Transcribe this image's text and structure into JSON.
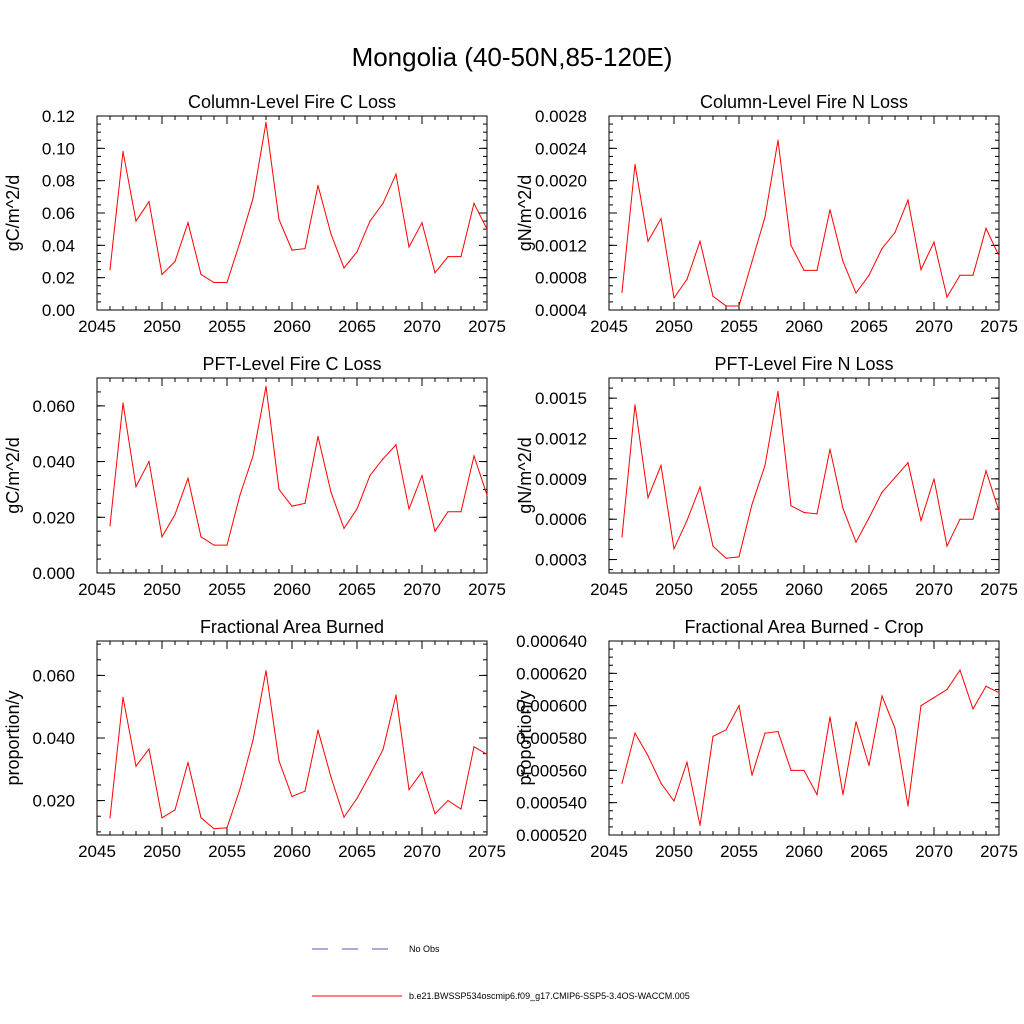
{
  "figure": {
    "title": "Mongolia (40-50N,85-120E)"
  },
  "legend": {
    "items": [
      {
        "label": "No Obs",
        "style": "dashed",
        "color": "#5a5ab4"
      },
      {
        "label": "b.e21.BWSSP534oscmip6.f09_g17.CMIP6-SSP5-3.4OS-WACCM.005",
        "style": "solid",
        "color": "#ff0000"
      }
    ]
  },
  "chart_data": [
    {
      "id": "col-fire-c",
      "type": "line",
      "title": "Column-Level Fire C Loss",
      "ylabel": "gC/m^2/d",
      "xlim": [
        2045,
        2075
      ],
      "ylim": [
        0.0,
        0.12
      ],
      "xticks": [
        2045,
        2050,
        2055,
        2060,
        2065,
        2070,
        2075
      ],
      "yticks": [
        "0.00",
        "0.02",
        "0.04",
        "0.06",
        "0.08",
        "0.10",
        "0.12"
      ],
      "color": "#ff0000",
      "x": [
        2046,
        2047,
        2048,
        2049,
        2050,
        2051,
        2052,
        2053,
        2054,
        2055,
        2056,
        2057,
        2058,
        2059,
        2060,
        2061,
        2062,
        2063,
        2064,
        2065,
        2066,
        2067,
        2068,
        2069,
        2070,
        2071,
        2072,
        2073,
        2074,
        2075
      ],
      "values": [
        0.025,
        0.098,
        0.055,
        0.067,
        0.022,
        0.03,
        0.054,
        0.022,
        0.017,
        0.017,
        0.042,
        0.069,
        0.116,
        0.056,
        0.037,
        0.038,
        0.077,
        0.047,
        0.026,
        0.036,
        0.055,
        0.066,
        0.084,
        0.039,
        0.054,
        0.023,
        0.033,
        0.033,
        0.066,
        0.05
      ]
    },
    {
      "id": "col-fire-n",
      "type": "line",
      "title": "Column-Level Fire N Loss",
      "ylabel": "gN/m^2/d",
      "xlim": [
        2045,
        2075
      ],
      "ylim": [
        0.0004,
        0.0028
      ],
      "xticks": [
        2045,
        2050,
        2055,
        2060,
        2065,
        2070,
        2075
      ],
      "yticks": [
        "0.0004",
        "0.0008",
        "0.0012",
        "0.0016",
        "0.0020",
        "0.0024",
        "0.0028"
      ],
      "color": "#ff0000",
      "x": [
        2046,
        2047,
        2048,
        2049,
        2050,
        2051,
        2052,
        2053,
        2054,
        2055,
        2056,
        2057,
        2058,
        2059,
        2060,
        2061,
        2062,
        2063,
        2064,
        2065,
        2066,
        2067,
        2068,
        2069,
        2070,
        2071,
        2072,
        2073,
        2074,
        2075
      ],
      "values": [
        0.00062,
        0.0022,
        0.00125,
        0.00153,
        0.00055,
        0.00078,
        0.00125,
        0.00057,
        0.00045,
        0.00045,
        0.001,
        0.00155,
        0.0025,
        0.0012,
        0.00089,
        0.00089,
        0.00164,
        0.001,
        0.00061,
        0.00083,
        0.00116,
        0.00136,
        0.00176,
        0.0009,
        0.00124,
        0.00056,
        0.00083,
        0.00083,
        0.00141,
        0.00107
      ]
    },
    {
      "id": "pft-fire-c",
      "type": "line",
      "title": "PFT-Level Fire C Loss",
      "ylabel": "gC/m^2/d",
      "xlim": [
        2045,
        2075
      ],
      "ylim": [
        0.0,
        0.07
      ],
      "xticks": [
        2045,
        2050,
        2055,
        2060,
        2065,
        2070,
        2075
      ],
      "yticks": [
        "0.000",
        "0.020",
        "0.040",
        "0.060"
      ],
      "ytick_values": [
        0.0,
        0.02,
        0.04,
        0.06
      ],
      "color": "#ff0000",
      "x": [
        2046,
        2047,
        2048,
        2049,
        2050,
        2051,
        2052,
        2053,
        2054,
        2055,
        2056,
        2057,
        2058,
        2059,
        2060,
        2061,
        2062,
        2063,
        2064,
        2065,
        2066,
        2067,
        2068,
        2069,
        2070,
        2071,
        2072,
        2073,
        2074,
        2075
      ],
      "values": [
        0.017,
        0.061,
        0.031,
        0.04,
        0.013,
        0.021,
        0.034,
        0.013,
        0.01,
        0.01,
        0.028,
        0.042,
        0.067,
        0.03,
        0.024,
        0.025,
        0.049,
        0.029,
        0.016,
        0.023,
        0.035,
        0.041,
        0.046,
        0.023,
        0.035,
        0.015,
        0.022,
        0.022,
        0.042,
        0.028
      ]
    },
    {
      "id": "pft-fire-n",
      "type": "line",
      "title": "PFT-Level Fire N Loss",
      "ylabel": "gN/m^2/d",
      "xlim": [
        2045,
        2075
      ],
      "ylim": [
        0.0002,
        0.00165
      ],
      "xticks": [
        2045,
        2050,
        2055,
        2060,
        2065,
        2070,
        2075
      ],
      "yticks": [
        "0.0003",
        "0.0006",
        "0.0009",
        "0.0012",
        "0.0015"
      ],
      "ytick_values": [
        0.0003,
        0.0006,
        0.0009,
        0.0012,
        0.0015
      ],
      "color": "#ff0000",
      "x": [
        2046,
        2047,
        2048,
        2049,
        2050,
        2051,
        2052,
        2053,
        2054,
        2055,
        2056,
        2057,
        2058,
        2059,
        2060,
        2061,
        2062,
        2063,
        2064,
        2065,
        2066,
        2067,
        2068,
        2069,
        2070,
        2071,
        2072,
        2073,
        2074,
        2075
      ],
      "values": [
        0.00047,
        0.00145,
        0.00076,
        0.001,
        0.00038,
        0.00059,
        0.00084,
        0.0004,
        0.00031,
        0.00032,
        0.00071,
        0.001,
        0.00155,
        0.0007,
        0.00065,
        0.00064,
        0.00112,
        0.00068,
        0.00043,
        0.00061,
        0.0008,
        0.00091,
        0.00102,
        0.00059,
        0.0009,
        0.0004,
        0.0006,
        0.0006,
        0.00096,
        0.00066
      ]
    },
    {
      "id": "frac-burned",
      "type": "line",
      "title": "Fractional Area Burned",
      "ylabel": "proportion/y",
      "xlim": [
        2045,
        2075
      ],
      "ylim": [
        0.009,
        0.071
      ],
      "xticks": [
        2045,
        2050,
        2055,
        2060,
        2065,
        2070,
        2075
      ],
      "yticks": [
        "0.020",
        "0.040",
        "0.060"
      ],
      "ytick_values": [
        0.02,
        0.04,
        0.06
      ],
      "color": "#ff0000",
      "x": [
        2046,
        2047,
        2048,
        2049,
        2050,
        2051,
        2052,
        2053,
        2054,
        2055,
        2056,
        2057,
        2058,
        2059,
        2060,
        2061,
        2062,
        2063,
        2064,
        2065,
        2066,
        2067,
        2068,
        2069,
        2070,
        2071,
        2072,
        2073,
        2074,
        2075
      ],
      "values": [
        0.0145,
        0.053,
        0.031,
        0.0365,
        0.0145,
        0.017,
        0.0322,
        0.0145,
        0.011,
        0.0113,
        0.0237,
        0.0393,
        0.0615,
        0.0327,
        0.0213,
        0.023,
        0.0425,
        0.0275,
        0.0147,
        0.0207,
        0.0283,
        0.0363,
        0.0537,
        0.0235,
        0.0292,
        0.0158,
        0.02,
        0.0173,
        0.0372,
        0.0348
      ]
    },
    {
      "id": "frac-burned-crop",
      "type": "line",
      "title": "Fractional Area Burned - Crop",
      "ylabel": "proportion/y",
      "xlim": [
        2045,
        2075
      ],
      "ylim": [
        0.00052,
        0.00064
      ],
      "xticks": [
        2045,
        2050,
        2055,
        2060,
        2065,
        2070,
        2075
      ],
      "yticks": [
        "0.000520",
        "0.000540",
        "0.000560",
        "0.000580",
        "0.000600",
        "0.000620",
        "0.000640"
      ],
      "color": "#ff0000",
      "x": [
        2046,
        2047,
        2048,
        2049,
        2050,
        2051,
        2052,
        2053,
        2054,
        2055,
        2056,
        2057,
        2058,
        2059,
        2060,
        2061,
        2062,
        2063,
        2064,
        2065,
        2066,
        2067,
        2068,
        2069,
        2070,
        2071,
        2072,
        2073,
        2074,
        2075
      ],
      "values": [
        0.000552,
        0.000583,
        0.000569,
        0.000552,
        0.000541,
        0.000565,
        0.000526,
        0.000581,
        0.000585,
        0.0006,
        0.000557,
        0.000583,
        0.000584,
        0.00056,
        0.00056,
        0.000545,
        0.000593,
        0.000545,
        0.00059,
        0.000563,
        0.000606,
        0.000586,
        0.000538,
        0.0006,
        0.000605,
        0.00061,
        0.000622,
        0.000598,
        0.000612,
        0.000608
      ]
    }
  ]
}
